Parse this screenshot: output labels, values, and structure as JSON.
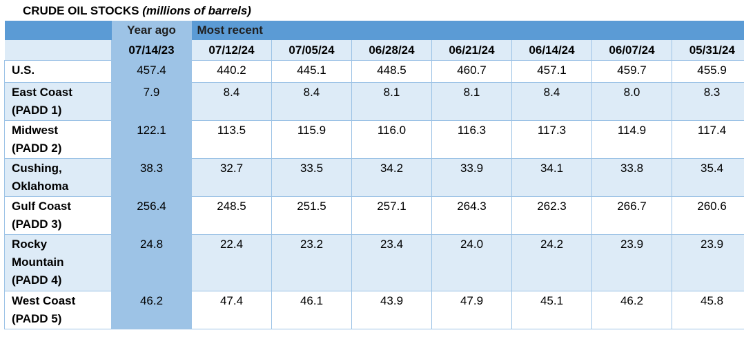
{
  "title": {
    "main": "CRUDE OIL STOCKS",
    "sub": "(millions of barrels)"
  },
  "header": {
    "year_ago": "Year ago",
    "most_recent": "Most recent",
    "dates": [
      "07/14/23",
      "07/12/24",
      "07/05/24",
      "06/28/24",
      "06/21/24",
      "06/14/24",
      "06/07/24",
      "05/31/24"
    ]
  },
  "rows": [
    {
      "label_lines": [
        "U.S."
      ],
      "values": [
        "457.4",
        "440.2",
        "445.1",
        "448.5",
        "460.7",
        "457.1",
        "459.7",
        "455.9"
      ]
    },
    {
      "label_lines": [
        "East Coast",
        "(PADD 1)"
      ],
      "values": [
        "7.9",
        "8.4",
        "8.4",
        "8.1",
        "8.1",
        "8.4",
        "8.0",
        "8.3"
      ]
    },
    {
      "label_lines": [
        "Midwest",
        "(PADD 2)"
      ],
      "values": [
        "122.1",
        "113.5",
        "115.9",
        "116.0",
        "116.3",
        "117.3",
        "114.9",
        "117.4"
      ]
    },
    {
      "label_lines": [
        "Cushing,",
        "Oklahoma"
      ],
      "values": [
        "38.3",
        "32.7",
        "33.5",
        "34.2",
        "33.9",
        "34.1",
        "33.8",
        "35.4"
      ]
    },
    {
      "label_lines": [
        "Gulf Coast",
        "(PADD 3)"
      ],
      "values": [
        "256.4",
        "248.5",
        "251.5",
        "257.1",
        "264.3",
        "262.3",
        "266.7",
        "260.6"
      ]
    },
    {
      "label_lines": [
        "Rocky",
        "Mountain",
        "(PADD 4)"
      ],
      "values": [
        "24.8",
        "22.4",
        "23.2",
        "23.4",
        "24.0",
        "24.2",
        "23.9",
        "23.9"
      ]
    },
    {
      "label_lines": [
        "West Coast",
        "(PADD 5)"
      ],
      "values": [
        "46.2",
        "47.4",
        "46.1",
        "43.9",
        "47.9",
        "45.1",
        "46.2",
        "45.8"
      ]
    }
  ]
}
